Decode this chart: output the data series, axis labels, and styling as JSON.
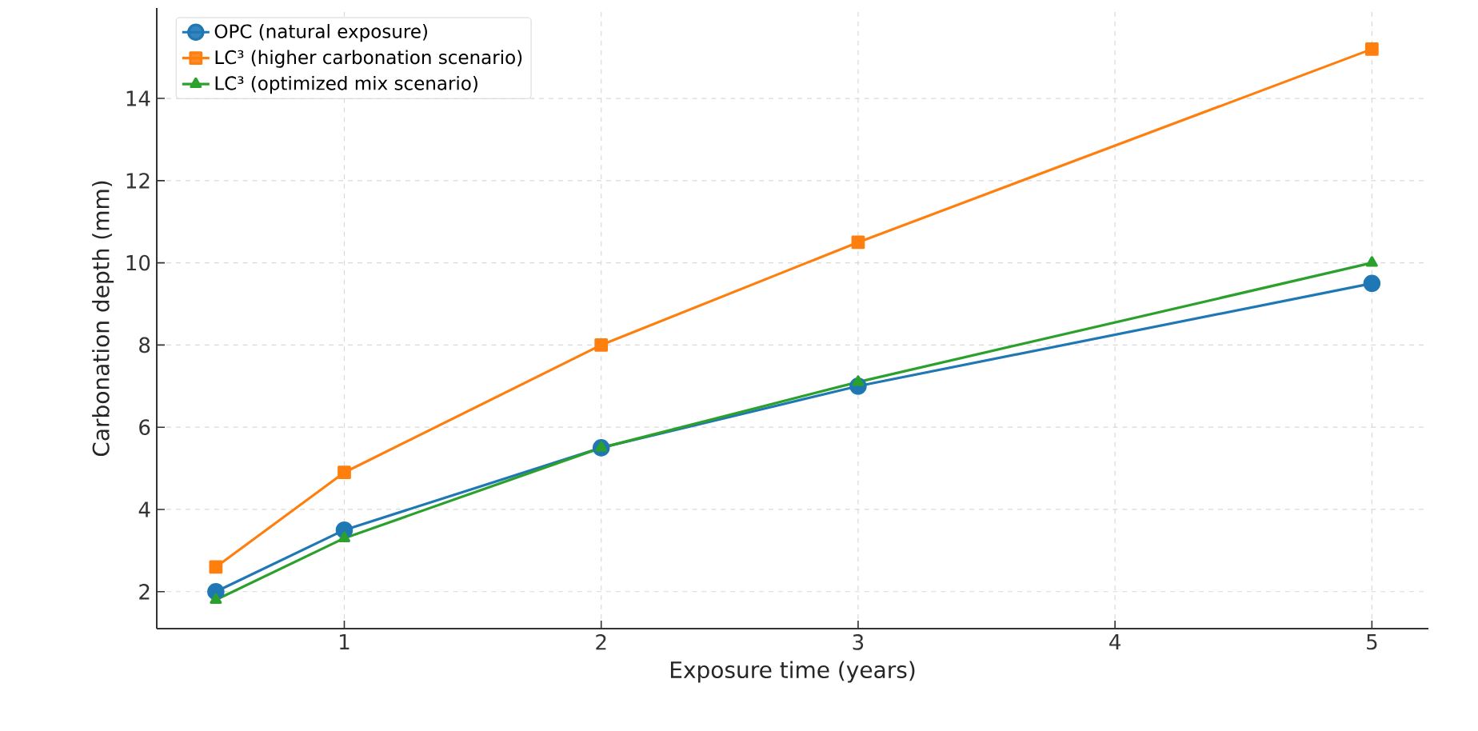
{
  "chart_data": {
    "type": "line",
    "xlabel": "Exposure time (years)",
    "ylabel": "Carbonation depth (mm)",
    "x": [
      0.5,
      1,
      2,
      3,
      5
    ],
    "series": [
      {
        "name": "OPC (natural exposure)",
        "color": "#1f77b4",
        "marker": "circle",
        "values": [
          2.0,
          3.5,
          5.5,
          7.0,
          9.5
        ]
      },
      {
        "name": "LC³ (higher carbonation scenario)",
        "color": "#ff7f0e",
        "marker": "square",
        "values": [
          2.6,
          4.9,
          8.0,
          10.5,
          15.2
        ]
      },
      {
        "name": "LC³ (optimized mix scenario)",
        "color": "#2ca02c",
        "marker": "triangle",
        "values": [
          1.8,
          3.3,
          5.5,
          7.1,
          10.0
        ]
      }
    ],
    "xlim": [
      0.27,
      5.22
    ],
    "ylim": [
      1.1,
      16.2
    ],
    "xticks": [
      1,
      2,
      3,
      4,
      5
    ],
    "yticks": [
      2,
      4,
      6,
      8,
      10,
      12,
      14
    ],
    "grid": true,
    "legend": "top left",
    "line_style": "solid"
  }
}
